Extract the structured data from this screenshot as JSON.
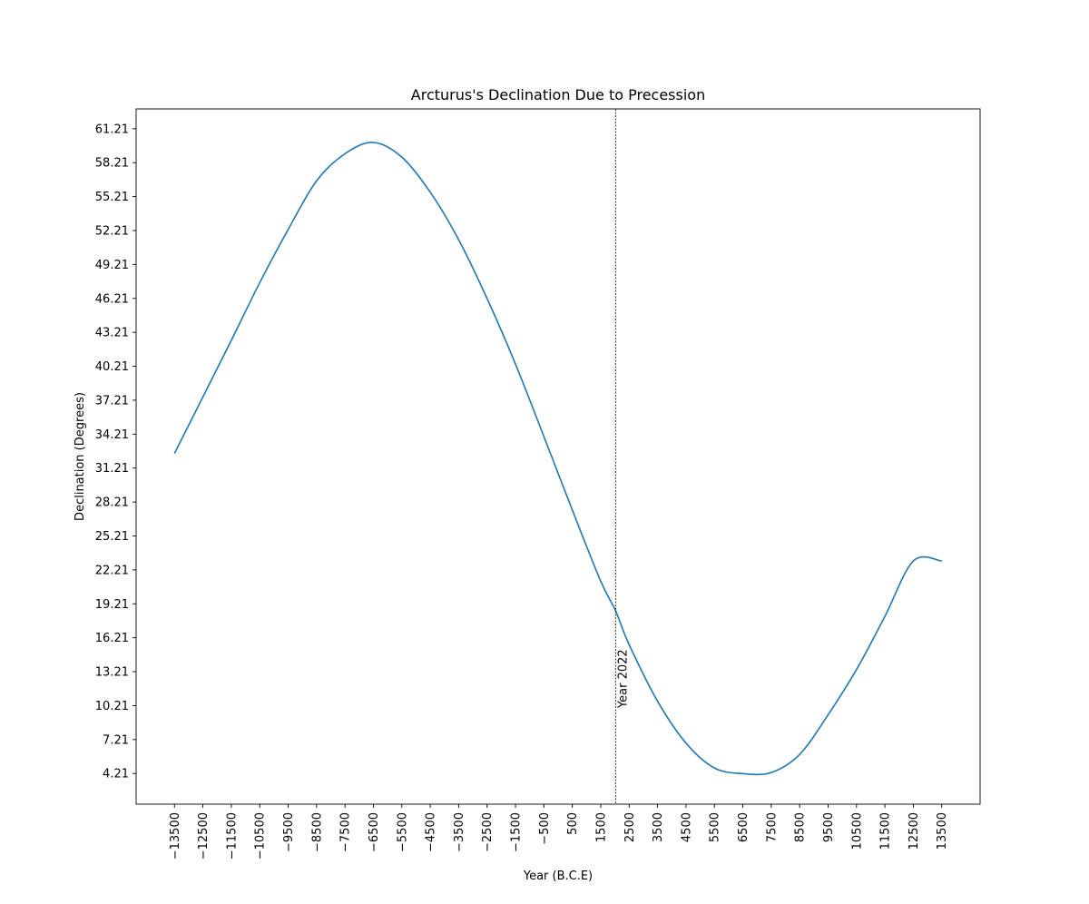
{
  "chart_data": {
    "type": "line",
    "title": "Arcturus's Declination Due to Precession",
    "xlabel": "Year (B.C.E)",
    "ylabel": "Declination (Degrees)",
    "xlim": [
      -14850,
      14850
    ],
    "ylim": [
      1.5,
      62.96
    ],
    "xticks": [
      -13500,
      -12500,
      -11500,
      -10500,
      -9500,
      -8500,
      -7500,
      -6500,
      -5500,
      -4500,
      -3500,
      -2500,
      -1500,
      -500,
      500,
      1500,
      2500,
      3500,
      4500,
      5500,
      6500,
      7500,
      8500,
      9500,
      10500,
      11500,
      12500,
      13500
    ],
    "xtick_labels": [
      "−13500",
      "−12500",
      "−11500",
      "−10500",
      "−9500",
      "−8500",
      "−7500",
      "−6500",
      "−5500",
      "−4500",
      "−3500",
      "−2500",
      "−1500",
      "−500",
      "500",
      "1500",
      "2500",
      "3500",
      "4500",
      "5500",
      "6500",
      "7500",
      "8500",
      "9500",
      "10500",
      "11500",
      "12500",
      "13500"
    ],
    "yticks": [
      4.21,
      7.21,
      10.21,
      13.21,
      16.21,
      19.21,
      22.21,
      25.21,
      28.21,
      31.21,
      34.21,
      37.21,
      40.21,
      43.21,
      46.21,
      49.21,
      52.21,
      55.21,
      58.21,
      61.21
    ],
    "ytick_labels": [
      "4.21",
      "7.21",
      "10.21",
      "13.21",
      "16.21",
      "19.21",
      "22.21",
      "25.21",
      "28.21",
      "31.21",
      "34.21",
      "37.21",
      "40.21",
      "43.21",
      "46.21",
      "49.21",
      "52.21",
      "55.21",
      "58.21",
      "61.21"
    ],
    "series": [
      {
        "color": "#1f77b4",
        "x": [
          -13500,
          -12500,
          -11500,
          -10500,
          -9500,
          -8500,
          -7500,
          -6500,
          -5500,
          -4500,
          -3500,
          -2500,
          -1500,
          -500,
          500,
          1500,
          2022,
          2500,
          3500,
          4500,
          5500,
          6500,
          7500,
          8500,
          9500,
          10500,
          11500,
          12500,
          13500
        ],
        "y": [
          32.5,
          37.5,
          42.5,
          47.6,
          52.3,
          56.6,
          59.0,
          60.0,
          58.7,
          55.6,
          51.4,
          46.2,
          40.4,
          34.0,
          27.5,
          21.2,
          18.6,
          15.6,
          10.6,
          6.9,
          4.7,
          4.2,
          4.3,
          5.9,
          9.4,
          13.4,
          18.1,
          23.0,
          23.0
        ]
      }
    ],
    "annotations": [
      {
        "type": "vline",
        "x": 2022,
        "style": "dashed",
        "color": "#000000",
        "text": "Year 2022"
      }
    ],
    "grid": false,
    "legend": "none"
  }
}
